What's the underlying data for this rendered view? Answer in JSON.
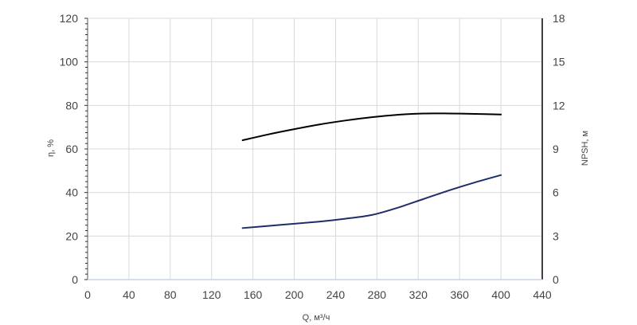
{
  "chart_data": {
    "type": "line",
    "title": "",
    "xlabel": "Q, м³/ч",
    "ylabel": "η, %",
    "y2label": "NPSH, м",
    "xlim": [
      0,
      440
    ],
    "ylim": [
      0,
      120
    ],
    "y2lim": [
      0,
      18
    ],
    "x_ticks": [
      "0",
      "40",
      "80",
      "120",
      "160",
      "200",
      "240",
      "280",
      "320",
      "360",
      "400",
      "440"
    ],
    "y_ticks": [
      "0",
      "20",
      "40",
      "60",
      "80",
      "100",
      "120"
    ],
    "y2_ticks": [
      "0",
      "3",
      "6",
      "9",
      "12",
      "15",
      "18"
    ],
    "grid": true,
    "series": [
      {
        "axis": "left",
        "color": "#000000",
        "x": [
          150,
          175,
          200,
          225,
          250,
          275,
          300,
          325,
          350,
          375,
          400
        ],
        "values": [
          64,
          66.7,
          69.1,
          71.3,
          73.1,
          74.6,
          75.7,
          76.3,
          76.3,
          76.1,
          75.8
        ]
      },
      {
        "axis": "right",
        "color": "#1f2d6b",
        "x": [
          150,
          175,
          200,
          225,
          250,
          275,
          300,
          325,
          350,
          375,
          400
        ],
        "values": [
          3.55,
          3.7,
          3.85,
          4.0,
          4.2,
          4.45,
          4.95,
          5.55,
          6.15,
          6.7,
          7.2
        ]
      }
    ]
  }
}
